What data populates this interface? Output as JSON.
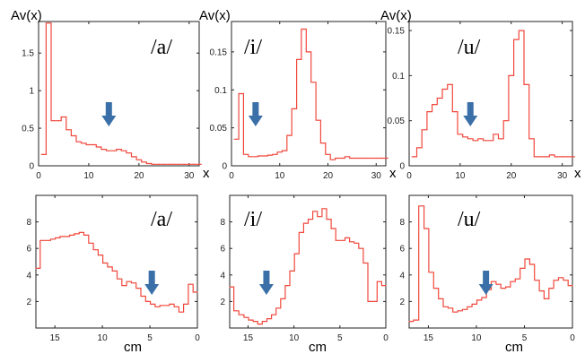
{
  "colors": {
    "line": "#f0483c",
    "arrow": "#3a6fa8",
    "axis": "#222222"
  },
  "chart_data": [
    {
      "type": "line",
      "vowel": "/a/",
      "ylabel": "Av(x)",
      "xlabel": "x",
      "xlim": [
        0,
        32
      ],
      "ylim": [
        0,
        1.92
      ],
      "arrow_x": 14,
      "xticks": [
        0,
        10,
        20,
        30
      ],
      "yticks": [
        0,
        0.5,
        1,
        1.5
      ],
      "x": [
        1,
        2,
        3,
        4,
        5,
        6,
        7,
        8,
        9,
        10,
        11,
        12,
        13,
        14,
        15,
        16,
        17,
        18,
        19,
        20,
        21,
        22,
        23,
        24,
        25,
        26,
        27,
        28,
        29,
        30,
        31,
        32
      ],
      "y": [
        0.15,
        1.9,
        0.6,
        0.6,
        0.65,
        0.48,
        0.4,
        0.32,
        0.3,
        0.28,
        0.28,
        0.25,
        0.22,
        0.2,
        0.2,
        0.22,
        0.2,
        0.17,
        0.12,
        0.08,
        0.05,
        0.03,
        0.02,
        0.02,
        0.02,
        0.02,
        0.02,
        0.02,
        0.02,
        0.02,
        0.02,
        0.02
      ]
    },
    {
      "type": "line",
      "vowel": "/i/",
      "ylabel": "Av(x)",
      "xlabel": "x",
      "xlim": [
        0,
        32
      ],
      "ylim": [
        0,
        0.19
      ],
      "arrow_x": 5,
      "xticks": [
        0,
        10,
        20,
        30
      ],
      "yticks": [
        0,
        0.05,
        0.1,
        0.15
      ],
      "x": [
        1,
        2,
        3,
        4,
        5,
        6,
        7,
        8,
        9,
        10,
        11,
        12,
        13,
        14,
        15,
        16,
        17,
        18,
        19,
        20,
        21,
        22,
        23,
        24,
        25,
        26,
        27,
        28,
        29,
        30,
        31,
        32
      ],
      "y": [
        0.035,
        0.095,
        0.015,
        0.012,
        0.012,
        0.013,
        0.013,
        0.014,
        0.015,
        0.018,
        0.02,
        0.04,
        0.075,
        0.14,
        0.18,
        0.15,
        0.11,
        0.06,
        0.03,
        0.015,
        0.008,
        0.01,
        0.01,
        0.012,
        0.01,
        0.01,
        0.01,
        0.01,
        0.01,
        0.01,
        0.01,
        0.01
      ]
    },
    {
      "type": "line",
      "vowel": "/u/",
      "ylabel": "Av(x)",
      "xlabel": "x",
      "xlim": [
        0,
        32
      ],
      "ylim": [
        0,
        0.16
      ],
      "arrow_x": 12,
      "xticks": [
        0,
        10,
        20,
        30
      ],
      "yticks": [
        0,
        0.05,
        0.1,
        0.15
      ],
      "x": [
        1,
        2,
        3,
        4,
        5,
        6,
        7,
        8,
        9,
        10,
        11,
        12,
        13,
        14,
        15,
        16,
        17,
        18,
        19,
        20,
        21,
        22,
        23,
        24,
        25,
        26,
        27,
        28,
        29,
        30,
        31,
        32
      ],
      "y": [
        0.01,
        0.02,
        0.04,
        0.06,
        0.068,
        0.075,
        0.085,
        0.09,
        0.06,
        0.035,
        0.032,
        0.03,
        0.028,
        0.03,
        0.028,
        0.028,
        0.035,
        0.03,
        0.05,
        0.1,
        0.14,
        0.15,
        0.09,
        0.03,
        0.01,
        0.01,
        0.01,
        0.012,
        0.01,
        0.01,
        0.01,
        0.01
      ]
    },
    {
      "type": "line",
      "vowel": "/a/",
      "xlabel": "cm",
      "xlim": [
        17,
        0
      ],
      "ylim": [
        0,
        10
      ],
      "arrow_x": 4.8,
      "xticks": [
        15,
        10,
        5,
        0
      ],
      "yticks": [
        2,
        4,
        6,
        8
      ],
      "x": [
        16.8,
        16.3,
        15.7,
        15.2,
        14.7,
        14.2,
        13.7,
        13.2,
        12.7,
        12.2,
        11.7,
        11.2,
        10.7,
        10.2,
        9.7,
        9.2,
        8.7,
        8.2,
        7.7,
        7.2,
        6.7,
        6.2,
        5.7,
        5.2,
        4.7,
        4.2,
        3.7,
        3.2,
        2.7,
        2.2,
        1.7,
        1.2,
        0.7,
        0.2
      ],
      "y": [
        4.5,
        6.6,
        6.6,
        6.7,
        6.8,
        6.9,
        6.9,
        7.0,
        7.1,
        7.2,
        7.0,
        6.4,
        5.9,
        5.5,
        4.9,
        4.6,
        4.3,
        3.7,
        3.2,
        3.5,
        3.4,
        3.0,
        2.4,
        2.0,
        1.8,
        1.6,
        1.7,
        1.7,
        1.8,
        1.6,
        1.2,
        1.8,
        3.3,
        2.7
      ]
    },
    {
      "type": "line",
      "vowel": "/i/",
      "xlabel": "cm",
      "xlim": [
        17,
        0
      ],
      "ylim": [
        0,
        10
      ],
      "arrow_x": 13,
      "xticks": [
        15,
        10,
        5,
        0
      ],
      "yticks": [
        2,
        4,
        6,
        8
      ],
      "x": [
        16.8,
        16.3,
        15.7,
        15.2,
        14.7,
        14.2,
        13.7,
        13.2,
        12.7,
        12.2,
        11.7,
        11.2,
        10.7,
        10.2,
        9.7,
        9.2,
        8.7,
        8.2,
        7.7,
        7.2,
        6.7,
        6.2,
        5.7,
        5.2,
        4.7,
        4.2,
        3.7,
        3.2,
        2.7,
        2.2,
        1.7,
        1.2,
        0.7,
        0.2
      ],
      "y": [
        3.1,
        1.3,
        1.0,
        0.8,
        0.6,
        0.5,
        0.3,
        0.5,
        0.7,
        1.0,
        1.5,
        2.2,
        3.2,
        4.3,
        5.6,
        7.2,
        7.9,
        8.2,
        8.8,
        8.4,
        9.0,
        8.2,
        7.5,
        6.6,
        6.6,
        6.8,
        6.5,
        6.4,
        6.0,
        4.9,
        2.0,
        2.0,
        3.5,
        3.2
      ]
    },
    {
      "type": "line",
      "vowel": "/u/",
      "xlabel": "cm",
      "xlim": [
        17,
        0
      ],
      "ylim": [
        0,
        10
      ],
      "arrow_x": 9,
      "xticks": [
        15,
        10,
        5,
        0
      ],
      "yticks": [
        2,
        4,
        6,
        8
      ],
      "x": [
        16.8,
        16.3,
        15.7,
        15.2,
        14.7,
        14.2,
        13.7,
        13.2,
        12.7,
        12.2,
        11.7,
        11.2,
        10.7,
        10.2,
        9.7,
        9.2,
        8.7,
        8.2,
        7.7,
        7.2,
        6.7,
        6.2,
        5.7,
        5.2,
        4.7,
        4.2,
        3.7,
        3.2,
        2.7,
        2.2,
        1.7,
        1.2,
        0.7,
        0.2
      ],
      "y": [
        0.5,
        0.6,
        9.2,
        7.5,
        4.2,
        3.0,
        2.2,
        1.6,
        1.5,
        1.2,
        1.3,
        1.4,
        1.6,
        1.8,
        2.1,
        2.3,
        2.9,
        3.5,
        3.3,
        3.0,
        3.1,
        3.5,
        3.7,
        4.5,
        5.2,
        4.8,
        3.6,
        2.8,
        2.2,
        3.0,
        3.6,
        3.8,
        3.6,
        3.2
      ]
    }
  ]
}
